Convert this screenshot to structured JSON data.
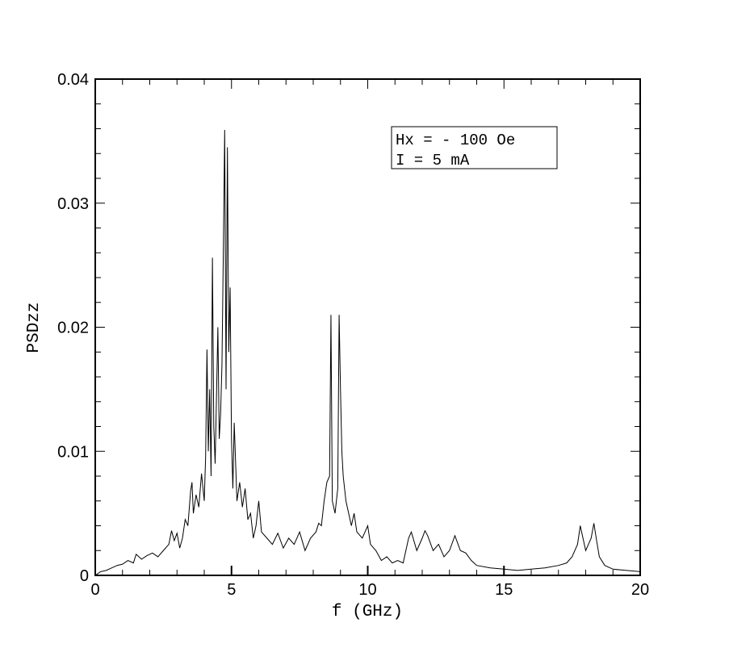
{
  "chart_data": {
    "type": "line",
    "title": "",
    "xlabel": "f (GHz)",
    "ylabel": "PSDzz",
    "xlim": [
      0,
      20
    ],
    "ylim": [
      0,
      0.04
    ],
    "x_ticks": [
      0,
      5,
      10,
      15,
      20
    ],
    "x_tick_labels": [
      "0",
      "5",
      "10",
      "15",
      "20"
    ],
    "y_ticks": [
      0,
      0.01,
      0.02,
      0.03,
      0.04
    ],
    "y_tick_labels": [
      "0",
      "0.01",
      "0.02",
      "0.03",
      "0.04"
    ],
    "grid": false,
    "legend": null,
    "annotation": {
      "position": "top-right",
      "lines": [
        "Hx = - 100 Oe",
        "I = 5 mA"
      ]
    },
    "series": [
      {
        "color": "#000000",
        "points": [
          [
            0.0,
            0.0
          ],
          [
            0.2,
            0.0003
          ],
          [
            0.4,
            0.0004
          ],
          [
            0.6,
            0.0006
          ],
          [
            0.8,
            0.0008
          ],
          [
            1.0,
            0.0009
          ],
          [
            1.2,
            0.0012
          ],
          [
            1.4,
            0.001
          ],
          [
            1.5,
            0.0017
          ],
          [
            1.7,
            0.0013
          ],
          [
            1.9,
            0.0016
          ],
          [
            2.1,
            0.0018
          ],
          [
            2.3,
            0.0015
          ],
          [
            2.5,
            0.002
          ],
          [
            2.7,
            0.0025
          ],
          [
            2.8,
            0.0036
          ],
          [
            2.9,
            0.0028
          ],
          [
            3.0,
            0.0034
          ],
          [
            3.1,
            0.0022
          ],
          [
            3.2,
            0.003
          ],
          [
            3.3,
            0.0045
          ],
          [
            3.4,
            0.004
          ],
          [
            3.5,
            0.0068
          ],
          [
            3.55,
            0.0075
          ],
          [
            3.6,
            0.005
          ],
          [
            3.7,
            0.0065
          ],
          [
            3.8,
            0.0055
          ],
          [
            3.9,
            0.0082
          ],
          [
            4.0,
            0.006
          ],
          [
            4.05,
            0.0095
          ],
          [
            4.1,
            0.0182
          ],
          [
            4.15,
            0.01
          ],
          [
            4.2,
            0.015
          ],
          [
            4.25,
            0.008
          ],
          [
            4.3,
            0.0256
          ],
          [
            4.35,
            0.012
          ],
          [
            4.4,
            0.009
          ],
          [
            4.45,
            0.0145
          ],
          [
            4.5,
            0.02
          ],
          [
            4.55,
            0.011
          ],
          [
            4.6,
            0.013
          ],
          [
            4.65,
            0.017
          ],
          [
            4.7,
            0.026
          ],
          [
            4.75,
            0.0359
          ],
          [
            4.8,
            0.015
          ],
          [
            4.85,
            0.0345
          ],
          [
            4.9,
            0.018
          ],
          [
            4.95,
            0.0232
          ],
          [
            5.0,
            0.011
          ],
          [
            5.05,
            0.007
          ],
          [
            5.1,
            0.0123
          ],
          [
            5.2,
            0.006
          ],
          [
            5.3,
            0.0075
          ],
          [
            5.4,
            0.0055
          ],
          [
            5.5,
            0.007
          ],
          [
            5.6,
            0.0045
          ],
          [
            5.7,
            0.005
          ],
          [
            5.8,
            0.003
          ],
          [
            5.9,
            0.004
          ],
          [
            6.0,
            0.006
          ],
          [
            6.1,
            0.0035
          ],
          [
            6.3,
            0.003
          ],
          [
            6.5,
            0.0025
          ],
          [
            6.7,
            0.0034
          ],
          [
            6.9,
            0.0022
          ],
          [
            7.1,
            0.003
          ],
          [
            7.3,
            0.0025
          ],
          [
            7.5,
            0.0035
          ],
          [
            7.7,
            0.002
          ],
          [
            7.9,
            0.003
          ],
          [
            8.1,
            0.0035
          ],
          [
            8.2,
            0.0042
          ],
          [
            8.3,
            0.004
          ],
          [
            8.4,
            0.006
          ],
          [
            8.5,
            0.0075
          ],
          [
            8.6,
            0.008
          ],
          [
            8.65,
            0.021
          ],
          [
            8.7,
            0.006
          ],
          [
            8.8,
            0.005
          ],
          [
            8.9,
            0.007
          ],
          [
            8.95,
            0.021
          ],
          [
            9.0,
            0.015
          ],
          [
            9.05,
            0.01
          ],
          [
            9.1,
            0.008
          ],
          [
            9.2,
            0.006
          ],
          [
            9.3,
            0.005
          ],
          [
            9.4,
            0.004
          ],
          [
            9.5,
            0.005
          ],
          [
            9.6,
            0.0035
          ],
          [
            9.8,
            0.003
          ],
          [
            10.0,
            0.004
          ],
          [
            10.1,
            0.0025
          ],
          [
            10.3,
            0.002
          ],
          [
            10.5,
            0.0012
          ],
          [
            10.7,
            0.0015
          ],
          [
            10.9,
            0.001
          ],
          [
            11.1,
            0.0012
          ],
          [
            11.3,
            0.001
          ],
          [
            11.5,
            0.003
          ],
          [
            11.6,
            0.0035
          ],
          [
            11.8,
            0.002
          ],
          [
            12.0,
            0.003
          ],
          [
            12.1,
            0.0036
          ],
          [
            12.2,
            0.0032
          ],
          [
            12.4,
            0.002
          ],
          [
            12.6,
            0.0025
          ],
          [
            12.8,
            0.0015
          ],
          [
            13.0,
            0.002
          ],
          [
            13.2,
            0.0032
          ],
          [
            13.4,
            0.002
          ],
          [
            13.6,
            0.0018
          ],
          [
            13.8,
            0.0012
          ],
          [
            14.0,
            0.0008
          ],
          [
            14.5,
            0.0006
          ],
          [
            15.0,
            0.0005
          ],
          [
            15.5,
            0.0004
          ],
          [
            16.0,
            0.0005
          ],
          [
            16.5,
            0.0006
          ],
          [
            17.0,
            0.0008
          ],
          [
            17.3,
            0.001
          ],
          [
            17.5,
            0.0015
          ],
          [
            17.7,
            0.0025
          ],
          [
            17.8,
            0.004
          ],
          [
            17.9,
            0.003
          ],
          [
            18.0,
            0.002
          ],
          [
            18.1,
            0.0025
          ],
          [
            18.2,
            0.003
          ],
          [
            18.3,
            0.0042
          ],
          [
            18.4,
            0.0028
          ],
          [
            18.5,
            0.0015
          ],
          [
            18.7,
            0.0008
          ],
          [
            19.0,
            0.0005
          ],
          [
            19.5,
            0.0004
          ],
          [
            20.0,
            0.0003
          ]
        ]
      }
    ]
  }
}
